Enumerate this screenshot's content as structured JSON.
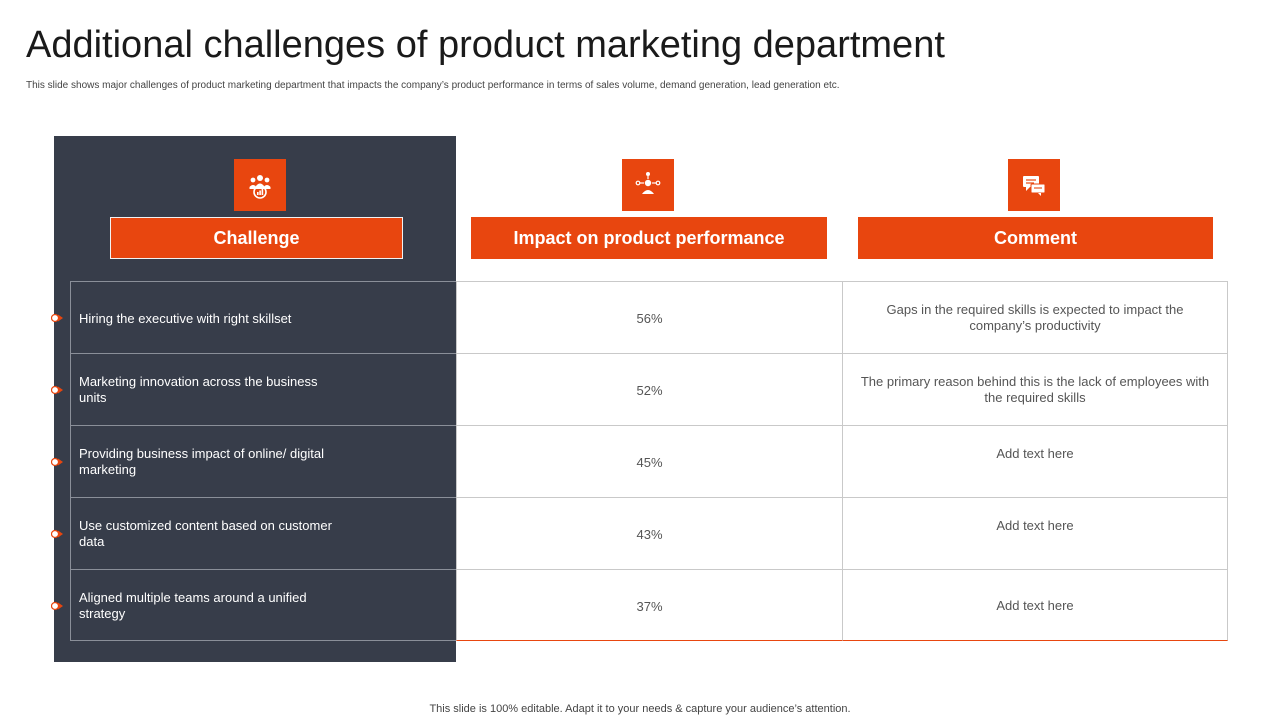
{
  "title": "Additional challenges of product marketing department",
  "subtitle": "This slide shows major challenges of product marketing department that impacts the company’s product performance in terms of sales volume, demand generation, lead generation etc.",
  "colors": {
    "accent": "#e8460f",
    "panel": "#373d4a"
  },
  "headers": {
    "challenge": {
      "label": "Challenge",
      "icon": "team-growth-icon"
    },
    "impact": {
      "label": "Impact on product performance",
      "icon": "user-network-icon"
    },
    "comment": {
      "label": "Comment",
      "icon": "chat-bubbles-icon"
    }
  },
  "rows": [
    {
      "challenge": "Hiring the executive with right skillset",
      "impact": "56%",
      "comment": "Gaps in the required skills is expected to impact the company’s productivity"
    },
    {
      "challenge": "Marketing innovation across the business units",
      "impact": "52%",
      "comment": "The primary reason behind this is the lack of employees with the required skills"
    },
    {
      "challenge": "Providing business impact of online/ digital marketing",
      "impact": "45%",
      "comment": "Add text here"
    },
    {
      "challenge": "Use customized content based on customer data",
      "impact": "43%",
      "comment": "Add text here"
    },
    {
      "challenge": "Aligned multiple teams around a unified strategy",
      "impact": "37%",
      "comment": "Add text here"
    }
  ],
  "footer": "This slide is 100% editable. Adapt it to your needs & capture your audience’s attention."
}
